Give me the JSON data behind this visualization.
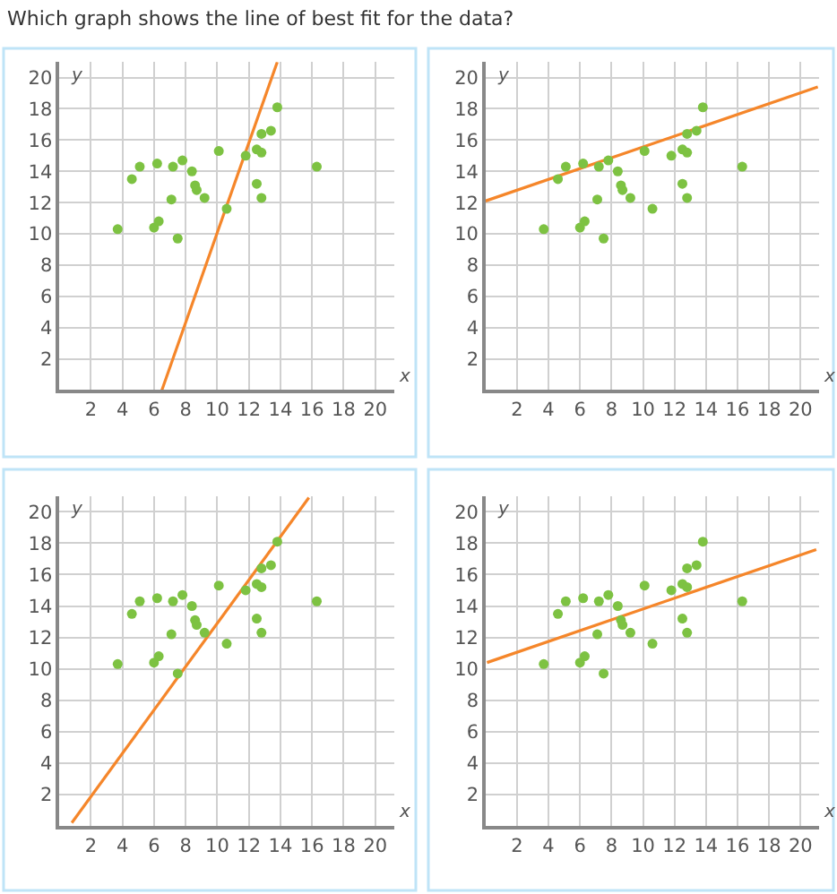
{
  "chart_data": [
    {
      "type": "scatter",
      "title": "Which graph shows the line of best fit for the data?",
      "xlabel": "x",
      "ylabel": "y",
      "xlim": [
        0,
        21.2
      ],
      "ylim": [
        0,
        21
      ],
      "xticks": [
        2,
        4,
        6,
        8,
        10,
        12,
        14,
        16,
        18,
        20
      ],
      "yticks": [
        2,
        4,
        6,
        8,
        10,
        12,
        14,
        16,
        18,
        20
      ],
      "grid": true,
      "x": [
        3.7,
        4.6,
        5.1,
        6.2,
        6.0,
        6.3,
        7.2,
        7.1,
        7.5,
        7.8,
        8.4,
        8.6,
        8.7,
        9.2,
        10.1,
        10.6,
        11.8,
        12.5,
        12.8,
        12.8,
        12.5,
        12.8,
        13.4,
        13.8,
        16.3
      ],
      "series": [
        {
          "type": "scatter",
          "color": "#7dc242",
          "marker": "circle",
          "values": [
            10.3,
            13.5,
            14.3,
            14.5,
            10.4,
            10.8,
            14.3,
            12.2,
            9.7,
            14.7,
            14.0,
            13.1,
            12.8,
            12.3,
            15.3,
            11.6,
            15.0,
            15.4,
            15.2,
            16.4,
            13.2,
            12.3,
            16.6,
            18.1,
            14.3
          ]
        },
        {
          "type": "line",
          "color": "#f5862a",
          "marker": "none",
          "line_style": "solid",
          "x": [
            6.5,
            13.8
          ],
          "values": [
            0,
            21
          ]
        }
      ]
    },
    {
      "type": "scatter",
      "xlabel": "x",
      "ylabel": "y",
      "xlim": [
        0,
        21.2
      ],
      "ylim": [
        0,
        21
      ],
      "xticks": [
        2,
        4,
        6,
        8,
        10,
        12,
        14,
        16,
        18,
        20
      ],
      "yticks": [
        2,
        4,
        6,
        8,
        10,
        12,
        14,
        16,
        18,
        20
      ],
      "grid": true,
      "x": [
        3.7,
        4.6,
        5.1,
        6.2,
        6.0,
        6.3,
        7.2,
        7.1,
        7.5,
        7.8,
        8.4,
        8.6,
        8.7,
        9.2,
        10.1,
        10.6,
        11.8,
        12.5,
        12.8,
        12.8,
        12.5,
        12.8,
        13.4,
        13.8,
        16.3
      ],
      "series": [
        {
          "type": "scatter",
          "color": "#7dc242",
          "marker": "circle",
          "values": [
            10.3,
            13.5,
            14.3,
            14.5,
            10.4,
            10.8,
            14.3,
            12.2,
            9.7,
            14.7,
            14.0,
            13.1,
            12.8,
            12.3,
            15.3,
            11.6,
            15.0,
            15.4,
            15.2,
            16.4,
            13.2,
            12.3,
            16.6,
            18.1,
            14.3
          ]
        },
        {
          "type": "line",
          "color": "#f5862a",
          "marker": "none",
          "line_style": "solid",
          "x": [
            0,
            21.1
          ],
          "values": [
            12.1,
            19.4
          ]
        }
      ]
    },
    {
      "type": "scatter",
      "xlabel": "x",
      "ylabel": "y",
      "xlim": [
        0,
        21.2
      ],
      "ylim": [
        0,
        21
      ],
      "xticks": [
        2,
        4,
        6,
        8,
        10,
        12,
        14,
        16,
        18,
        20
      ],
      "yticks": [
        2,
        4,
        6,
        8,
        10,
        12,
        14,
        16,
        18,
        20
      ],
      "grid": true,
      "x": [
        3.7,
        4.6,
        5.1,
        6.2,
        6.0,
        6.3,
        7.2,
        7.1,
        7.5,
        7.8,
        8.4,
        8.6,
        8.7,
        9.2,
        10.1,
        10.6,
        11.8,
        12.5,
        12.8,
        12.8,
        12.5,
        12.8,
        13.4,
        13.8,
        16.3
      ],
      "series": [
        {
          "type": "scatter",
          "color": "#7dc242",
          "marker": "circle",
          "values": [
            10.3,
            13.5,
            14.3,
            14.5,
            10.4,
            10.8,
            14.3,
            12.2,
            9.7,
            14.7,
            14.0,
            13.1,
            12.8,
            12.3,
            15.3,
            11.6,
            15.0,
            15.4,
            15.2,
            16.4,
            13.2,
            12.3,
            16.6,
            18.1,
            14.3
          ]
        },
        {
          "type": "line",
          "color": "#f5862a",
          "marker": "none",
          "line_style": "solid",
          "x": [
            0.8,
            15.8
          ],
          "values": [
            0.2,
            20.9
          ]
        }
      ]
    },
    {
      "type": "scatter",
      "xlabel": "x",
      "ylabel": "y",
      "xlim": [
        0,
        21.2
      ],
      "ylim": [
        0,
        21
      ],
      "xticks": [
        2,
        4,
        6,
        8,
        10,
        12,
        14,
        16,
        18,
        20
      ],
      "yticks": [
        2,
        4,
        6,
        8,
        10,
        12,
        14,
        16,
        18,
        20
      ],
      "grid": true,
      "x": [
        3.7,
        4.6,
        5.1,
        6.2,
        6.0,
        6.3,
        7.2,
        7.1,
        7.5,
        7.8,
        8.4,
        8.6,
        8.7,
        9.2,
        10.1,
        10.6,
        11.8,
        12.5,
        12.8,
        12.8,
        12.5,
        12.8,
        13.4,
        13.8,
        16.3
      ],
      "series": [
        {
          "type": "scatter",
          "color": "#7dc242",
          "marker": "circle",
          "values": [
            10.3,
            13.5,
            14.3,
            14.5,
            10.4,
            10.8,
            14.3,
            12.2,
            9.7,
            14.7,
            14.0,
            13.1,
            12.8,
            12.3,
            15.3,
            11.6,
            15.0,
            15.4,
            15.2,
            16.4,
            13.2,
            12.3,
            16.6,
            18.1,
            14.3
          ]
        },
        {
          "type": "line",
          "color": "#f5862a",
          "marker": "none",
          "line_style": "solid",
          "x": [
            0.1,
            21.0
          ],
          "values": [
            10.4,
            17.6
          ]
        }
      ]
    }
  ]
}
